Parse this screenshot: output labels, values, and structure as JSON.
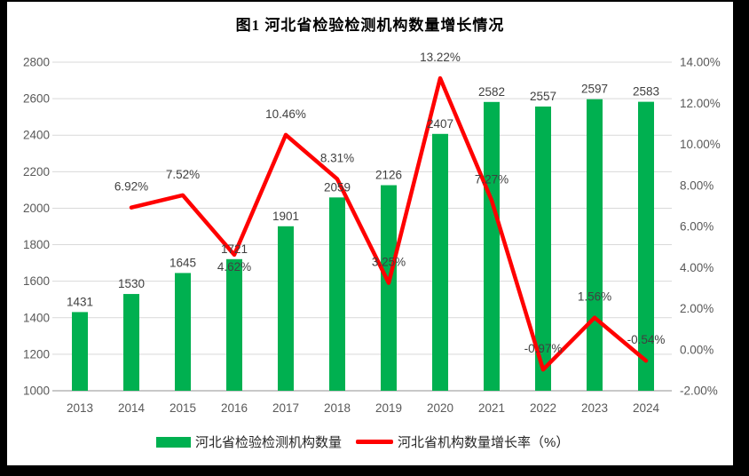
{
  "chart_data": {
    "type": "bar+line",
    "title": "图1 河北省检验检测机构数量增长情况",
    "background_color": "#000000",
    "panel_color": "#FFFFFF",
    "grid_color": "#D9D9D9",
    "axis_line_color": "#C8C8C8",
    "categories": [
      "2013",
      "2014",
      "2015",
      "2016",
      "2017",
      "2018",
      "2019",
      "2020",
      "2021",
      "2022",
      "2023",
      "2024"
    ],
    "series": [
      {
        "name": "河北省检验检测机构数量",
        "type": "bar",
        "color": "#00B050",
        "axis": "left",
        "values": [
          1431,
          1530,
          1645,
          1721,
          1901,
          2059,
          2126,
          2407,
          2582,
          2557,
          2597,
          2583
        ],
        "labels": [
          "1431",
          "1530",
          "1645",
          "1721",
          "1901",
          "2059",
          "2126",
          "2407",
          "2582",
          "2557",
          "2597",
          "2583"
        ]
      },
      {
        "name": "河北省机构数量增长率（%）",
        "type": "line",
        "color": "#FF0000",
        "axis": "right",
        "values": [
          null,
          6.92,
          7.52,
          4.62,
          10.46,
          8.31,
          3.25,
          13.22,
          7.27,
          -0.97,
          1.56,
          -0.54
        ],
        "labels": [
          "",
          "6.92%",
          "7.52%",
          "4.62%",
          "10.46%",
          "8.31%",
          "3.25%",
          "13.22%",
          "7.27%",
          "-0.97%",
          "1.56%",
          "-0.54%"
        ],
        "label_side": [
          "",
          "above",
          "above",
          "below",
          "above",
          "above",
          "above",
          "above",
          "above",
          "above",
          "above",
          "above"
        ]
      }
    ],
    "left_axis": {
      "min": 1000,
      "max": 2800,
      "step": 200,
      "ticks": [
        "1000",
        "1200",
        "1400",
        "1600",
        "1800",
        "2000",
        "2200",
        "2400",
        "2600",
        "2800"
      ]
    },
    "right_axis": {
      "min": -2,
      "max": 14,
      "step": 2,
      "ticks": [
        "-2.00%",
        "0.00%",
        "2.00%",
        "4.00%",
        "6.00%",
        "8.00%",
        "10.00%",
        "12.00%",
        "14.00%"
      ]
    },
    "legend_position": "bottom",
    "grid": true
  }
}
